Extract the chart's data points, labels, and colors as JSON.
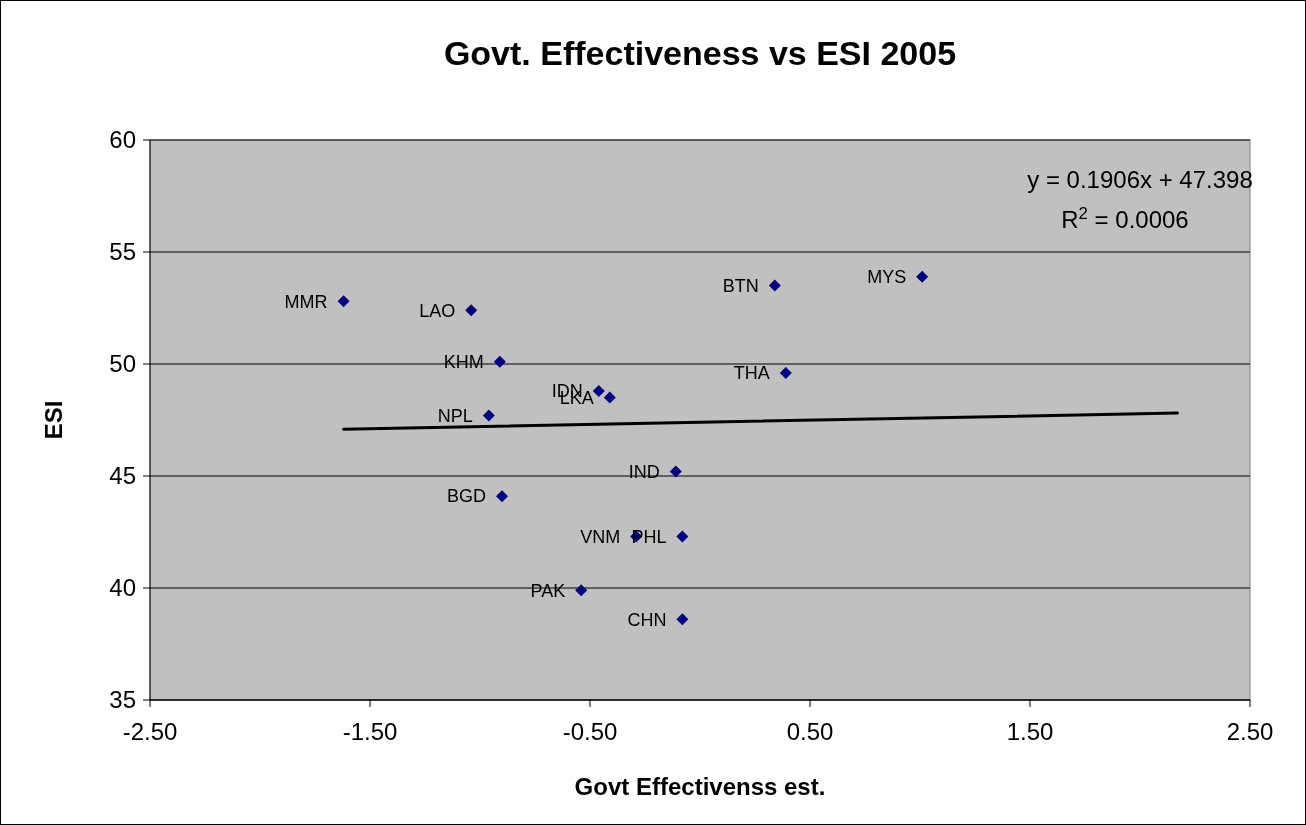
{
  "chart_data": {
    "type": "scatter",
    "title": "Govt. Effectiveness vs ESI 2005",
    "xlabel": "Govt Effectivenss est.",
    "ylabel": "ESI",
    "xlim": [
      -2.5,
      2.5
    ],
    "xticks": [
      {
        "value": -2.5,
        "label": "-2.50"
      },
      {
        "value": -1.5,
        "label": "-1.50"
      },
      {
        "value": -0.5,
        "label": "-0.50"
      },
      {
        "value": 0.5,
        "label": "0.50"
      },
      {
        "value": 1.5,
        "label": "1.50"
      },
      {
        "value": 2.5,
        "label": "2.50"
      }
    ],
    "ylim": [
      35,
      60
    ],
    "yticks": [
      35,
      40,
      45,
      50,
      55,
      60
    ],
    "grid": "y",
    "series": [
      {
        "marker": "diamond",
        "color": "#000080",
        "x": [
          -1.62,
          -1.04,
          -0.91,
          -0.96,
          -0.46,
          -0.41,
          -0.9,
          -0.11,
          -0.29,
          -0.08,
          -0.54,
          -0.08,
          0.34,
          0.39,
          1.01
        ],
        "values": [
          52.8,
          52.4,
          50.1,
          47.7,
          48.8,
          48.5,
          44.1,
          45.2,
          42.3,
          42.3,
          39.9,
          38.6,
          53.5,
          49.6,
          53.9
        ]
      },
      {
        "type": "line",
        "color": "#000000",
        "line_style": "solid",
        "x": [
          -1.62,
          2.17
        ],
        "values": [
          47.09,
          47.81
        ]
      }
    ],
    "annotations": [
      {
        "text": "MMR",
        "x": -1.62,
        "y": 52.8
      },
      {
        "text": "LAO",
        "x": -1.04,
        "y": 52.4
      },
      {
        "text": "KHM",
        "x": -0.91,
        "y": 50.1
      },
      {
        "text": "NPL",
        "x": -0.96,
        "y": 47.7
      },
      {
        "text": "IDN",
        "x": -0.46,
        "y": 48.8
      },
      {
        "text": "LKA",
        "x": -0.41,
        "y": 48.5
      },
      {
        "text": "BGD",
        "x": -0.9,
        "y": 44.1
      },
      {
        "text": "IND",
        "x": -0.11,
        "y": 45.2
      },
      {
        "text": "VNM",
        "x": -0.29,
        "y": 42.3
      },
      {
        "text": "PHL",
        "x": -0.08,
        "y": 42.3
      },
      {
        "text": "PAK",
        "x": -0.54,
        "y": 39.9
      },
      {
        "text": "CHN",
        "x": -0.08,
        "y": 38.6
      },
      {
        "text": "BTN",
        "x": 0.34,
        "y": 53.5
      },
      {
        "text": "THA",
        "x": 0.39,
        "y": 49.6
      },
      {
        "text": "MYS",
        "x": 1.01,
        "y": 53.9
      },
      "y = 0.1906x + 47.398",
      "R$^{2}$ = 0.0006"
    ]
  }
}
